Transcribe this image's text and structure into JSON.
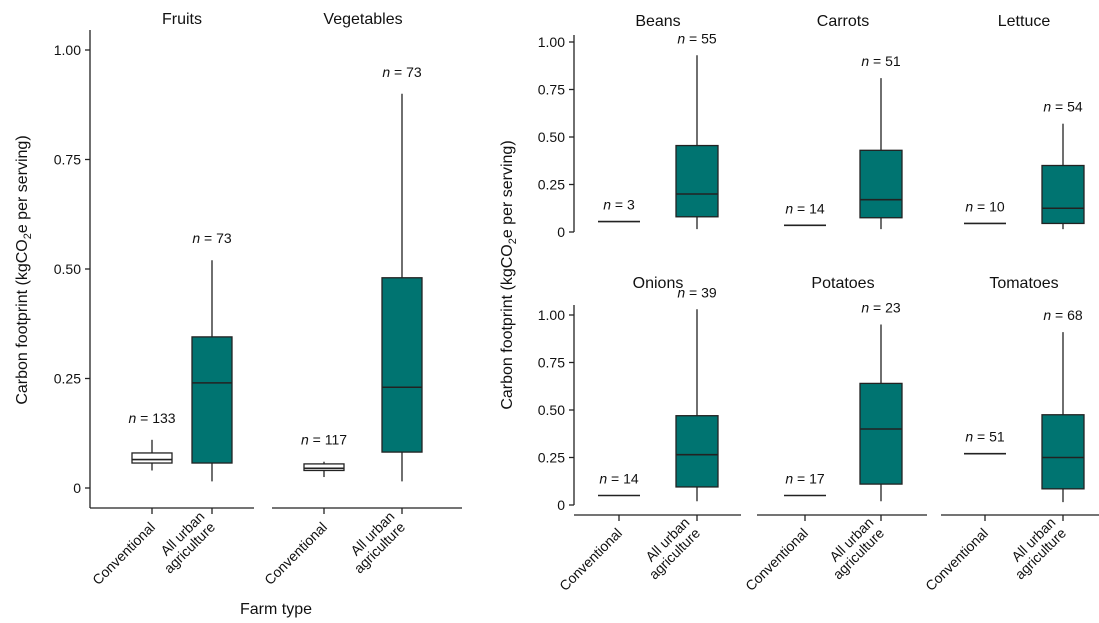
{
  "axis_labels": {
    "y_left": "Carbon footprint (kgCO2e per serving)",
    "y_right": "Carbon footprint (kgCO2e per serving)",
    "x_left": "Farm type"
  },
  "colors": {
    "conventional_fill": "#ffffff",
    "urban_fill": "#007471",
    "stroke": "#222222"
  },
  "chart_data": [
    {
      "type": "box",
      "panel": "left",
      "ylabel": "Carbon footprint (kgCO2e per serving)",
      "xlabel": "Farm type",
      "ylim": [
        0,
        1.0
      ],
      "yticks": [
        "0",
        "0.25",
        "0.50",
        "0.75",
        "1.00"
      ],
      "categories": [
        "Conventional",
        "All urban agriculture"
      ],
      "facets": [
        {
          "title": "Fruits",
          "boxes": [
            {
              "category": "Conventional",
              "n_label": "n = 133",
              "min": 0.04,
              "q1": 0.057,
              "median": 0.065,
              "q3": 0.08,
              "max": 0.11
            },
            {
              "category": "All urban agriculture",
              "n_label": "n = 73",
              "min": 0.015,
              "q1": 0.057,
              "median": 0.24,
              "q3": 0.345,
              "max": 0.52
            }
          ]
        },
        {
          "title": "Vegetables",
          "boxes": [
            {
              "category": "Conventional",
              "n_label": "n = 117",
              "min": 0.025,
              "q1": 0.04,
              "median": 0.045,
              "q3": 0.055,
              "max": 0.06
            },
            {
              "category": "All urban agriculture",
              "n_label": "n = 73",
              "min": 0.015,
              "q1": 0.082,
              "median": 0.23,
              "q3": 0.48,
              "max": 0.9
            }
          ]
        }
      ]
    },
    {
      "type": "box",
      "panel": "right",
      "ylabel": "Carbon footprint (kgCO2e per serving)",
      "ylim": [
        0,
        1.0
      ],
      "yticks": [
        "0",
        "0.25",
        "0.50",
        "0.75",
        "1.00"
      ],
      "categories": [
        "Conventional",
        "All urban agriculture"
      ],
      "facets": [
        {
          "title": "Beans",
          "boxes": [
            {
              "category": "Conventional",
              "n_label": "n = 3",
              "min": 0.055,
              "q1": 0.055,
              "median": 0.055,
              "q3": 0.055,
              "max": 0.055
            },
            {
              "category": "All urban agriculture",
              "n_label": "n = 55",
              "min": 0.015,
              "q1": 0.08,
              "median": 0.2,
              "q3": 0.455,
              "max": 0.93
            }
          ]
        },
        {
          "title": "Carrots",
          "boxes": [
            {
              "category": "Conventional",
              "n_label": "n = 14",
              "min": 0.035,
              "q1": 0.035,
              "median": 0.035,
              "q3": 0.035,
              "max": 0.035
            },
            {
              "category": "All urban agriculture",
              "n_label": "n = 51",
              "min": 0.015,
              "q1": 0.075,
              "median": 0.17,
              "q3": 0.43,
              "max": 0.81
            }
          ]
        },
        {
          "title": "Lettuce",
          "boxes": [
            {
              "category": "Conventional",
              "n_label": "n = 10",
              "min": 0.045,
              "q1": 0.045,
              "median": 0.045,
              "q3": 0.045,
              "max": 0.045
            },
            {
              "category": "All urban agriculture",
              "n_label": "n = 54",
              "min": 0.015,
              "q1": 0.045,
              "median": 0.125,
              "q3": 0.35,
              "max": 0.57
            }
          ]
        },
        {
          "title": "Onions",
          "boxes": [
            {
              "category": "Conventional",
              "n_label": "n = 14",
              "min": 0.05,
              "q1": 0.05,
              "median": 0.05,
              "q3": 0.05,
              "max": 0.05
            },
            {
              "category": "All urban agriculture",
              "n_label": "n = 39",
              "min": 0.02,
              "q1": 0.095,
              "median": 0.265,
              "q3": 0.47,
              "max": 1.03
            }
          ]
        },
        {
          "title": "Potatoes",
          "boxes": [
            {
              "category": "Conventional",
              "n_label": "n = 17",
              "min": 0.05,
              "q1": 0.05,
              "median": 0.05,
              "q3": 0.05,
              "max": 0.05
            },
            {
              "category": "All urban agriculture",
              "n_label": "n = 23",
              "min": 0.02,
              "q1": 0.11,
              "median": 0.4,
              "q3": 0.64,
              "max": 0.95
            }
          ]
        },
        {
          "title": "Tomatoes",
          "boxes": [
            {
              "category": "Conventional",
              "n_label": "n = 51",
              "min": 0.27,
              "q1": 0.27,
              "median": 0.27,
              "q3": 0.27,
              "max": 0.27
            },
            {
              "category": "All urban agriculture",
              "n_label": "n = 68",
              "min": 0.015,
              "q1": 0.085,
              "median": 0.25,
              "q3": 0.475,
              "max": 0.91
            }
          ]
        }
      ]
    }
  ]
}
